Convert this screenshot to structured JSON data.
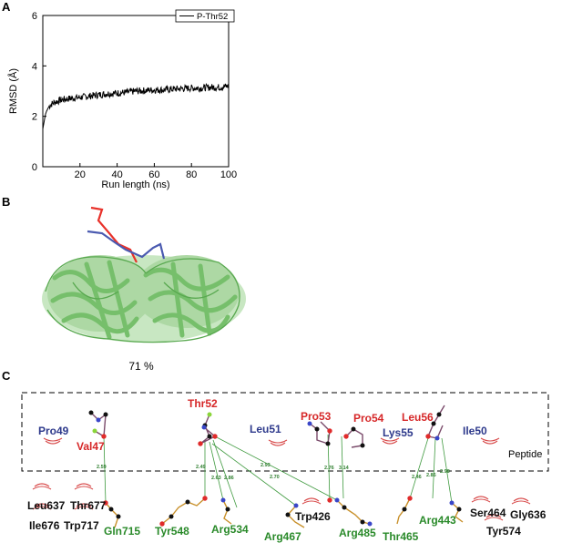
{
  "panels": {
    "a": "A",
    "b": "B",
    "c": "C"
  },
  "chart_data": {
    "type": "line",
    "xlabel": "Run length (ns)",
    "ylabel": "RMSD (Å)",
    "xlim": [
      0,
      100
    ],
    "ylim": [
      0,
      6
    ],
    "xticks": [
      "20",
      "40",
      "60",
      "80",
      "100"
    ],
    "yticks": [
      "0",
      "2",
      "4",
      "6"
    ],
    "legend_position": "top-right",
    "series": [
      {
        "name": "P-Thr52",
        "color": "#000000",
        "x": [
          0,
          0.5,
          1,
          1.5,
          2,
          3,
          4,
          5,
          6,
          8,
          10,
          12,
          14,
          16,
          18,
          20,
          25,
          30,
          35,
          40,
          45,
          50,
          55,
          60,
          65,
          70,
          75,
          80,
          85,
          90,
          95,
          100
        ],
        "y": [
          1.5,
          1.7,
          1.9,
          2.1,
          2.2,
          2.35,
          2.45,
          2.5,
          2.55,
          2.6,
          2.65,
          2.68,
          2.7,
          2.72,
          2.74,
          2.75,
          2.8,
          2.85,
          2.9,
          2.92,
          2.95,
          3.0,
          3.02,
          3.05,
          3.05,
          3.08,
          3.1,
          3.12,
          3.12,
          3.15,
          3.15,
          3.2
        ]
      }
    ]
  },
  "structure": {
    "occupancy": "71 %"
  },
  "interactions": {
    "peptide_label": "Peptide",
    "peptide_residues": [
      {
        "name": "Pro49",
        "color": "#2e3a8c"
      },
      {
        "name": "Val47",
        "color": "#d62728"
      },
      {
        "name": "Thr52",
        "color": "#d62728"
      },
      {
        "name": "Leu51",
        "color": "#2e3a8c"
      },
      {
        "name": "Pro53",
        "color": "#d62728"
      },
      {
        "name": "Pro54",
        "color": "#d62728"
      },
      {
        "name": "Leu56",
        "color": "#d62728"
      },
      {
        "name": "Lys55",
        "color": "#2e3a8c"
      },
      {
        "name": "Ile50",
        "color": "#2e3a8c"
      }
    ],
    "protein_residues_black": [
      "Leu637",
      "Thr677",
      "Ile676",
      "Trp717",
      "Trp426",
      "Ser464",
      "Gly636",
      "Tyr574"
    ],
    "protein_residues_green": [
      "Gln715",
      "Tyr548",
      "Arg534",
      "Arg467",
      "Arg485",
      "Thr465",
      "Arg443"
    ],
    "bonds": [
      "2.59",
      "2.49",
      "2.63",
      "2.86",
      "2.93",
      "2.70",
      "2.76",
      "3.14",
      "2.46",
      "2.85",
      "2.98"
    ]
  }
}
